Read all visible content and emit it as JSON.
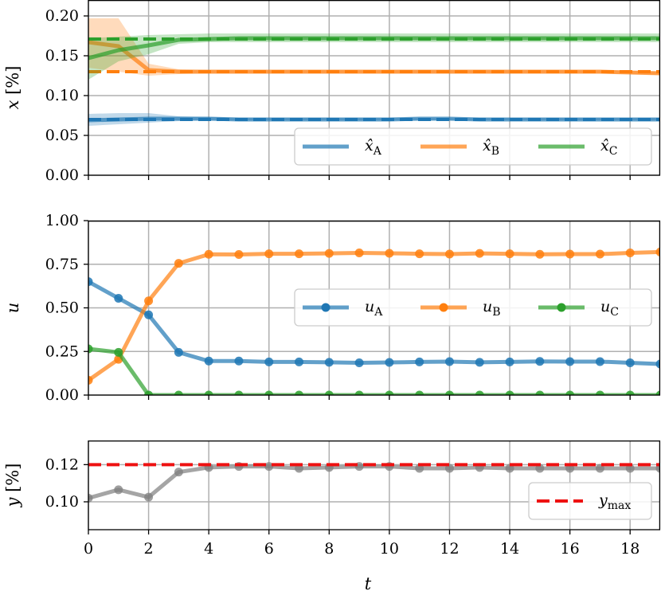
{
  "chart_data": [
    {
      "type": "line",
      "panel": "top",
      "ylabel": "x [%]",
      "xlabel": "",
      "xlim": [
        0,
        19
      ],
      "ylim": [
        0,
        0.22
      ],
      "yticks": [
        "0.00",
        "0.05",
        "0.10",
        "0.15",
        "0.20"
      ],
      "ytick_values": [
        0,
        0.05,
        0.1,
        0.15,
        0.2
      ],
      "grid": true,
      "legend_position": "lower-right",
      "x": [
        0,
        1,
        2,
        3,
        4,
        5,
        6,
        7,
        8,
        9,
        10,
        11,
        12,
        13,
        14,
        15,
        16,
        17,
        18,
        19
      ],
      "series": [
        {
          "name": "x̂",
          "subscript": "A",
          "color": "#1f77b4",
          "values": [
            0.069,
            0.07,
            0.071,
            0.071,
            0.071,
            0.07,
            0.07,
            0.07,
            0.07,
            0.07,
            0.07,
            0.071,
            0.071,
            0.07,
            0.07,
            0.07,
            0.07,
            0.07,
            0.07,
            0.07
          ],
          "band_lower": [
            0.062,
            0.064,
            0.066,
            0.068,
            0.069,
            0.069,
            0.069,
            0.069,
            0.069,
            0.069,
            0.069,
            0.069,
            0.069,
            0.069,
            0.069,
            0.069,
            0.069,
            0.069,
            0.069,
            0.069
          ],
          "band_upper": [
            0.077,
            0.078,
            0.078,
            0.074,
            0.073,
            0.072,
            0.072,
            0.072,
            0.072,
            0.072,
            0.072,
            0.072,
            0.072,
            0.072,
            0.072,
            0.072,
            0.072,
            0.072,
            0.072,
            0.072
          ],
          "true_value": 0.07
        },
        {
          "name": "x̂",
          "subscript": "B",
          "color": "#ff7f0e",
          "values": [
            0.167,
            0.162,
            0.132,
            0.13,
            0.13,
            0.13,
            0.13,
            0.13,
            0.13,
            0.13,
            0.13,
            0.13,
            0.13,
            0.13,
            0.13,
            0.13,
            0.13,
            0.13,
            0.129,
            0.128
          ],
          "band_lower": [
            0.135,
            0.13,
            0.125,
            0.127,
            0.128,
            0.128,
            0.128,
            0.128,
            0.128,
            0.128,
            0.128,
            0.128,
            0.128,
            0.128,
            0.128,
            0.128,
            0.128,
            0.128,
            0.127,
            0.126
          ],
          "band_upper": [
            0.197,
            0.197,
            0.14,
            0.133,
            0.132,
            0.132,
            0.132,
            0.132,
            0.132,
            0.132,
            0.132,
            0.132,
            0.132,
            0.132,
            0.132,
            0.132,
            0.132,
            0.132,
            0.131,
            0.13
          ],
          "true_value": 0.13
        },
        {
          "name": "x̂",
          "subscript": "C",
          "color": "#2ca02c",
          "values": [
            0.147,
            0.157,
            0.163,
            0.17,
            0.171,
            0.172,
            0.172,
            0.172,
            0.172,
            0.172,
            0.172,
            0.172,
            0.172,
            0.172,
            0.172,
            0.172,
            0.172,
            0.172,
            0.172,
            0.172
          ],
          "band_lower": [
            0.12,
            0.143,
            0.152,
            0.165,
            0.167,
            0.167,
            0.167,
            0.167,
            0.167,
            0.167,
            0.167,
            0.167,
            0.167,
            0.167,
            0.167,
            0.167,
            0.167,
            0.167,
            0.167,
            0.167
          ],
          "band_upper": [
            0.172,
            0.174,
            0.176,
            0.177,
            0.178,
            0.178,
            0.178,
            0.178,
            0.178,
            0.178,
            0.178,
            0.178,
            0.178,
            0.178,
            0.178,
            0.178,
            0.178,
            0.178,
            0.178,
            0.178
          ],
          "true_value": 0.171
        }
      ]
    },
    {
      "type": "line",
      "panel": "middle",
      "ylabel": "u",
      "xlabel": "",
      "xlim": [
        0,
        19
      ],
      "ylim": [
        0,
        1.0
      ],
      "yticks": [
        "0.00",
        "0.25",
        "0.50",
        "0.75",
        "1.00"
      ],
      "ytick_values": [
        0,
        0.25,
        0.5,
        0.75,
        1.0
      ],
      "grid": true,
      "legend_position": "center-right",
      "x": [
        0,
        1,
        2,
        3,
        4,
        5,
        6,
        7,
        8,
        9,
        10,
        11,
        12,
        13,
        14,
        15,
        16,
        17,
        18,
        19
      ],
      "series": [
        {
          "name": "u",
          "subscript": "A",
          "color": "#1f77b4",
          "values": [
            0.65,
            0.555,
            0.46,
            0.245,
            0.195,
            0.195,
            0.19,
            0.19,
            0.188,
            0.185,
            0.187,
            0.19,
            0.192,
            0.188,
            0.19,
            0.193,
            0.192,
            0.192,
            0.185,
            0.178
          ]
        },
        {
          "name": "u",
          "subscript": "B",
          "color": "#ff7f0e",
          "values": [
            0.085,
            0.205,
            0.54,
            0.755,
            0.807,
            0.806,
            0.81,
            0.81,
            0.812,
            0.815,
            0.813,
            0.81,
            0.808,
            0.812,
            0.81,
            0.807,
            0.808,
            0.808,
            0.815,
            0.82
          ]
        },
        {
          "name": "u",
          "subscript": "C",
          "color": "#2ca02c",
          "values": [
            0.265,
            0.245,
            0.0,
            0.0,
            0.0,
            0.0,
            0.0,
            0.0,
            0.0,
            0.0,
            0.0,
            0.0,
            0.0,
            0.0,
            0.0,
            0.0,
            0.0,
            0.0,
            0.0,
            0.0
          ]
        }
      ]
    },
    {
      "type": "line",
      "panel": "bottom",
      "ylabel": "y [%]",
      "xlabel": "t",
      "xlim": [
        0,
        19
      ],
      "ylim": [
        0.085,
        0.133
      ],
      "yticks": [
        "0.10",
        "0.12"
      ],
      "ytick_values": [
        0.1,
        0.12
      ],
      "xticks": [
        "0",
        "2",
        "4",
        "6",
        "8",
        "10",
        "12",
        "14",
        "16",
        "18"
      ],
      "xtick_values": [
        0,
        2,
        4,
        6,
        8,
        10,
        12,
        14,
        16,
        18
      ],
      "grid": true,
      "legend_position": "lower-right",
      "x": [
        0,
        1,
        2,
        3,
        4,
        5,
        6,
        7,
        8,
        9,
        10,
        11,
        12,
        13,
        14,
        15,
        16,
        17,
        18,
        19
      ],
      "series": [
        {
          "name": "",
          "color": "#7f7f7f",
          "values": [
            0.102,
            0.1065,
            0.1025,
            0.116,
            0.1185,
            0.119,
            0.119,
            0.118,
            0.1185,
            0.119,
            0.119,
            0.118,
            0.118,
            0.1185,
            0.118,
            0.118,
            0.118,
            0.118,
            0.118,
            0.118
          ]
        }
      ],
      "reference_line": {
        "name": "y",
        "subscript": "max",
        "color": "#ee1111",
        "value": 0.12
      }
    }
  ]
}
